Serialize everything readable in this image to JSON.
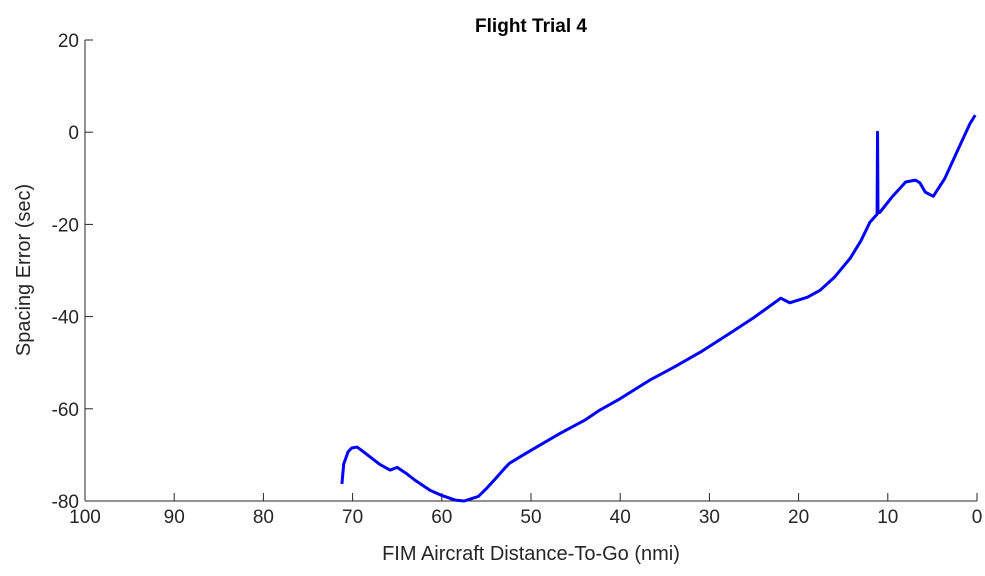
{
  "chart_data": {
    "type": "line",
    "title": "Flight Trial 4",
    "x_label": "FIM Aircraft Distance-To-Go (nmi)",
    "y_label": "Spacing Error (sec)",
    "xlim": [
      100,
      0
    ],
    "ylim": [
      -80,
      20
    ],
    "xticks": [
      100,
      90,
      80,
      70,
      60,
      50,
      40,
      30,
      20,
      10,
      0
    ],
    "yticks": [
      20,
      0,
      -20,
      -40,
      -60,
      -80
    ],
    "series": [
      {
        "color": "#0000ff",
        "x": [
          71.2,
          71.0,
          70.5,
          70.1,
          69.5,
          69.0,
          68.0,
          67.0,
          65.8,
          65.0,
          64.0,
          63.0,
          61.3,
          60.0,
          58.5,
          57.5,
          55.9,
          55.0,
          54.0,
          53.0,
          52.4,
          50.0,
          46.7,
          44.0,
          42.3,
          40.0,
          36.7,
          34.0,
          31.0,
          27.7,
          25.0,
          22.0,
          21.0,
          19.0,
          17.6,
          16.0,
          14.2,
          13.0,
          12.0,
          11.2,
          11.15,
          11.1,
          10.9,
          9.5,
          8.0,
          6.9,
          6.4,
          5.8,
          4.9,
          3.6,
          1.9,
          0.8,
          0.2
        ],
        "values": [
          -76.3,
          -72.0,
          -69.3,
          -68.5,
          -68.3,
          -69.0,
          -70.5,
          -72.0,
          -73.3,
          -72.7,
          -74.0,
          -75.5,
          -77.7,
          -78.8,
          -79.8,
          -80.0,
          -79.0,
          -77.3,
          -75.2,
          -73.0,
          -71.8,
          -69.0,
          -65.3,
          -62.5,
          -60.3,
          -57.8,
          -53.8,
          -51.0,
          -47.7,
          -43.6,
          -40.2,
          -36.0,
          -37.0,
          -35.8,
          -34.3,
          -31.5,
          -27.3,
          -23.5,
          -19.5,
          -17.8,
          0,
          -17.5,
          -17.4,
          -14.0,
          -10.8,
          -10.4,
          -11.0,
          -13.0,
          -13.9,
          -10.0,
          -2.8,
          1.8,
          3.7
        ]
      }
    ]
  }
}
